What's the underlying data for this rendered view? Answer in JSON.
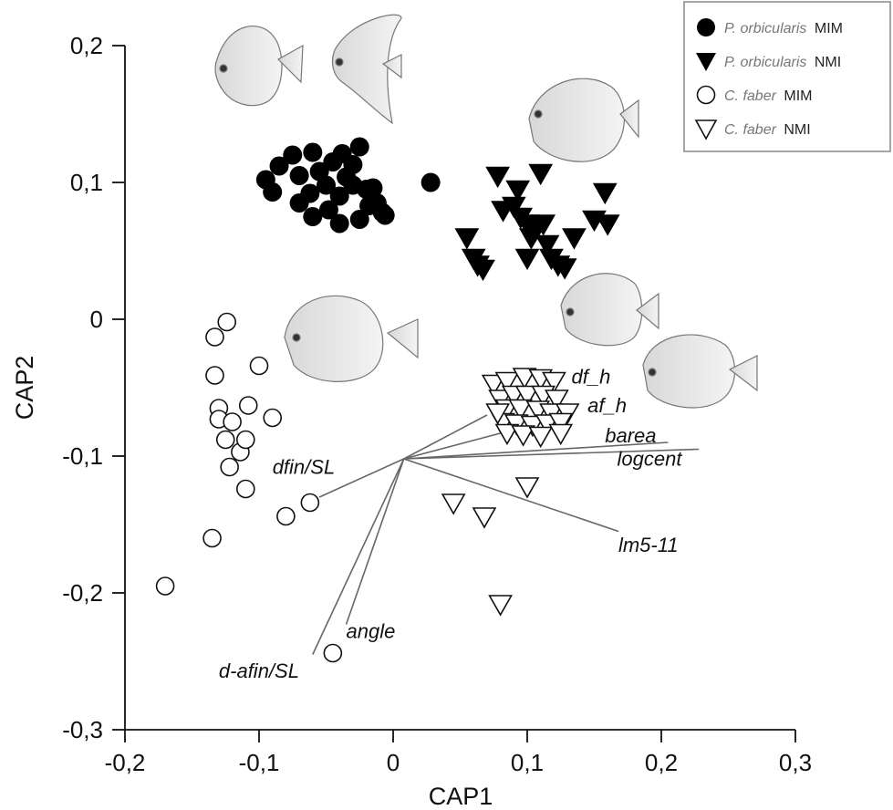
{
  "chart_data": {
    "type": "scatter",
    "xlabel": "CAP1",
    "ylabel": "CAP2",
    "xlim": [
      -0.2,
      0.3
    ],
    "ylim": [
      -0.3,
      0.2
    ],
    "x_ticks": [
      "-0,2",
      "-0,1",
      "0",
      "0,1",
      "0,2",
      "0,3"
    ],
    "y_ticks": [
      "0,2",
      "0,1",
      "0",
      "-0,1",
      "-0,2",
      "-0,3"
    ],
    "series": [
      {
        "name": "P. orbicularis MIM",
        "legend_species": "P. orbicularis",
        "legend_group": "MIM",
        "marker": "filled-circle",
        "points": [
          [
            -0.095,
            0.102
          ],
          [
            -0.09,
            0.093
          ],
          [
            -0.085,
            0.112
          ],
          [
            -0.075,
            0.12
          ],
          [
            -0.07,
            0.105
          ],
          [
            -0.07,
            0.085
          ],
          [
            -0.062,
            0.092
          ],
          [
            -0.06,
            0.075
          ],
          [
            -0.06,
            0.122
          ],
          [
            -0.055,
            0.108
          ],
          [
            -0.05,
            0.098
          ],
          [
            -0.048,
            0.08
          ],
          [
            -0.045,
            0.115
          ],
          [
            -0.04,
            0.09
          ],
          [
            -0.04,
            0.07
          ],
          [
            -0.038,
            0.121
          ],
          [
            -0.035,
            0.104
          ],
          [
            -0.03,
            0.098
          ],
          [
            -0.03,
            0.113
          ],
          [
            -0.025,
            0.073
          ],
          [
            -0.02,
            0.095
          ],
          [
            -0.018,
            0.083
          ],
          [
            -0.012,
            0.085
          ],
          [
            -0.008,
            0.078
          ],
          [
            -0.006,
            0.076
          ],
          [
            -0.025,
            0.126
          ],
          [
            -0.015,
            0.096
          ],
          [
            0.028,
            0.1
          ]
        ]
      },
      {
        "name": "P. orbicularis NMI",
        "legend_species": "P. orbicularis",
        "legend_group": "NMI",
        "marker": "filled-triangle",
        "points": [
          [
            0.055,
            0.06
          ],
          [
            0.06,
            0.045
          ],
          [
            0.063,
            0.04
          ],
          [
            0.067,
            0.037
          ],
          [
            0.078,
            0.105
          ],
          [
            0.082,
            0.08
          ],
          [
            0.09,
            0.083
          ],
          [
            0.093,
            0.095
          ],
          [
            0.095,
            0.075
          ],
          [
            0.1,
            0.07
          ],
          [
            0.103,
            0.06
          ],
          [
            0.106,
            0.065
          ],
          [
            0.11,
            0.107
          ],
          [
            0.112,
            0.07
          ],
          [
            0.115,
            0.055
          ],
          [
            0.118,
            0.045
          ],
          [
            0.123,
            0.04
          ],
          [
            0.128,
            0.038
          ],
          [
            0.135,
            0.06
          ],
          [
            0.15,
            0.073
          ],
          [
            0.158,
            0.093
          ],
          [
            0.16,
            0.07
          ],
          [
            0.1,
            0.045
          ]
        ]
      },
      {
        "name": "C. faber MIM",
        "legend_species": "C. faber",
        "legend_group": "MIM",
        "marker": "open-circle",
        "points": [
          [
            -0.17,
            -0.195
          ],
          [
            -0.135,
            -0.16
          ],
          [
            -0.133,
            -0.013
          ],
          [
            -0.133,
            -0.041
          ],
          [
            -0.13,
            -0.065
          ],
          [
            -0.13,
            -0.073
          ],
          [
            -0.125,
            -0.088
          ],
          [
            -0.124,
            -0.002
          ],
          [
            -0.122,
            -0.108
          ],
          [
            -0.12,
            -0.075
          ],
          [
            -0.114,
            -0.097
          ],
          [
            -0.11,
            -0.088
          ],
          [
            -0.11,
            -0.124
          ],
          [
            -0.108,
            -0.063
          ],
          [
            -0.1,
            -0.034
          ],
          [
            -0.09,
            -0.072
          ],
          [
            -0.08,
            -0.144
          ],
          [
            -0.062,
            -0.134
          ],
          [
            -0.045,
            -0.244
          ]
        ]
      },
      {
        "name": "C. faber NMI",
        "legend_species": "C. faber",
        "legend_group": "NMI",
        "marker": "open-triangle",
        "points": [
          [
            0.045,
            -0.134
          ],
          [
            0.068,
            -0.144
          ],
          [
            0.08,
            -0.208
          ],
          [
            0.1,
            -0.122
          ],
          [
            0.075,
            -0.047
          ],
          [
            0.085,
            -0.045
          ],
          [
            0.098,
            -0.042
          ],
          [
            0.11,
            -0.043
          ],
          [
            0.12,
            -0.045
          ],
          [
            0.08,
            -0.058
          ],
          [
            0.09,
            -0.055
          ],
          [
            0.1,
            -0.055
          ],
          [
            0.112,
            -0.055
          ],
          [
            0.122,
            -0.058
          ],
          [
            0.085,
            -0.065
          ],
          [
            0.095,
            -0.065
          ],
          [
            0.108,
            -0.066
          ],
          [
            0.118,
            -0.068
          ],
          [
            0.13,
            -0.068
          ],
          [
            0.082,
            -0.075
          ],
          [
            0.092,
            -0.076
          ],
          [
            0.104,
            -0.077
          ],
          [
            0.115,
            -0.076
          ],
          [
            0.125,
            -0.075
          ],
          [
            0.085,
            -0.083
          ],
          [
            0.097,
            -0.084
          ],
          [
            0.11,
            -0.085
          ],
          [
            0.125,
            -0.083
          ],
          [
            0.078,
            -0.068
          ]
        ]
      }
    ],
    "vectors": {
      "origin": [
        0.008,
        -0.102
      ],
      "items": [
        {
          "label": "df_h",
          "end": [
            0.07,
            -0.07
          ]
        },
        {
          "label": "af_h",
          "end": [
            0.085,
            -0.082
          ]
        },
        {
          "label": "barea",
          "end": [
            0.205,
            -0.09
          ]
        },
        {
          "label": "logcent",
          "end": [
            0.228,
            -0.095
          ]
        },
        {
          "label": "lm5-11",
          "end": [
            0.168,
            -0.155
          ]
        },
        {
          "label": "dfin/SL",
          "end": [
            -0.055,
            -0.13
          ]
        },
        {
          "label": "angle",
          "end": [
            -0.035,
            -0.223
          ]
        },
        {
          "label": "d-afin/SL",
          "end": [
            -0.06,
            -0.245
          ]
        }
      ],
      "label_positions_data": {
        "df_h": [
          0.133,
          -0.047
        ],
        "af_h": [
          0.145,
          -0.068
        ],
        "barea": [
          0.158,
          -0.09
        ],
        "logcent": [
          0.167,
          -0.107
        ],
        "lm5-11": [
          0.168,
          -0.17
        ],
        "dfin/SL": [
          -0.09,
          -0.113
        ],
        "angle": [
          -0.035,
          -0.233
        ],
        "d-afin/SL": [
          -0.13,
          -0.262
        ]
      }
    },
    "legend": {
      "position": "top-right"
    }
  }
}
